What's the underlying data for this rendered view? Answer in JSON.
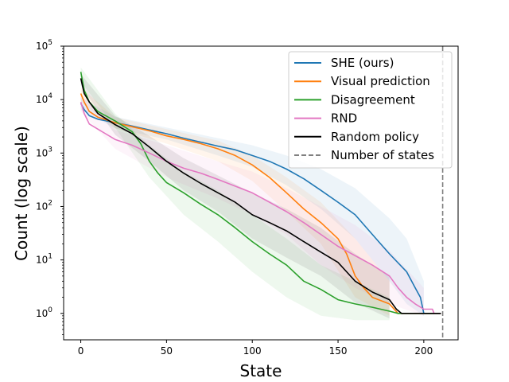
{
  "chart_data": {
    "type": "line",
    "xlabel": "State",
    "ylabel": "Count (log scale)",
    "xlim": [
      -10,
      220
    ],
    "ylim": [
      0.32,
      100000
    ],
    "yscale": "log",
    "x_ticks": [
      0,
      50,
      100,
      150,
      200
    ],
    "y_ticks": [
      1,
      10,
      100,
      1000,
      10000,
      100000
    ],
    "y_tick_labels": [
      {
        "base": "10",
        "exp": "0"
      },
      {
        "base": "10",
        "exp": "1"
      },
      {
        "base": "10",
        "exp": "2"
      },
      {
        "base": "10",
        "exp": "3"
      },
      {
        "base": "10",
        "exp": "4"
      },
      {
        "base": "10",
        "exp": "5"
      }
    ],
    "grid": false,
    "legend_position": "upper right",
    "series": [
      {
        "name": "SHE (ours)",
        "color": "#1f77b4",
        "points": [
          [
            0,
            8500
          ],
          [
            2,
            6500
          ],
          [
            5,
            5000
          ],
          [
            10,
            4300
          ],
          [
            20,
            3700
          ],
          [
            30,
            3200
          ],
          [
            40,
            2700
          ],
          [
            50,
            2300
          ],
          [
            60,
            1900
          ],
          [
            70,
            1600
          ],
          [
            80,
            1350
          ],
          [
            90,
            1150
          ],
          [
            100,
            900
          ],
          [
            110,
            700
          ],
          [
            120,
            500
          ],
          [
            130,
            330
          ],
          [
            140,
            200
          ],
          [
            150,
            120
          ],
          [
            160,
            70
          ],
          [
            170,
            30
          ],
          [
            180,
            13
          ],
          [
            190,
            6
          ],
          [
            195,
            3
          ],
          [
            198,
            2
          ],
          [
            200,
            1
          ],
          [
            210,
            1
          ]
        ],
        "band": [
          [
            0,
            11000,
            6500
          ],
          [
            20,
            4800,
            2900
          ],
          [
            50,
            3000,
            1800
          ],
          [
            80,
            1900,
            900
          ],
          [
            100,
            1400,
            550
          ],
          [
            120,
            900,
            250
          ],
          [
            140,
            500,
            90
          ],
          [
            160,
            220,
            25
          ],
          [
            180,
            60,
            4
          ],
          [
            190,
            25,
            1.5
          ],
          [
            200,
            4,
            0.9
          ]
        ]
      },
      {
        "name": "Visual prediction",
        "color": "#ff7f0e",
        "points": [
          [
            0,
            13000
          ],
          [
            2,
            9000
          ],
          [
            5,
            6000
          ],
          [
            10,
            4700
          ],
          [
            20,
            3700
          ],
          [
            30,
            3100
          ],
          [
            40,
            2600
          ],
          [
            50,
            2100
          ],
          [
            60,
            1800
          ],
          [
            70,
            1500
          ],
          [
            80,
            1200
          ],
          [
            90,
            900
          ],
          [
            100,
            600
          ],
          [
            110,
            350
          ],
          [
            120,
            180
          ],
          [
            130,
            90
          ],
          [
            140,
            50
          ],
          [
            150,
            25
          ],
          [
            155,
            13
          ],
          [
            160,
            5
          ],
          [
            165,
            3
          ],
          [
            170,
            2
          ],
          [
            180,
            1.5
          ],
          [
            185,
            1
          ],
          [
            210,
            1
          ]
        ],
        "band": [
          [
            0,
            17000,
            9000
          ],
          [
            20,
            4700,
            2900
          ],
          [
            50,
            2800,
            1500
          ],
          [
            80,
            1700,
            700
          ],
          [
            100,
            900,
            300
          ],
          [
            120,
            350,
            80
          ],
          [
            140,
            120,
            20
          ],
          [
            160,
            25,
            2
          ],
          [
            180,
            4,
            0.9
          ]
        ]
      },
      {
        "name": "Disagreement",
        "color": "#2ca02c",
        "points": [
          [
            0,
            33000
          ],
          [
            2,
            15000
          ],
          [
            5,
            9000
          ],
          [
            10,
            6000
          ],
          [
            20,
            4000
          ],
          [
            30,
            2500
          ],
          [
            35,
            1500
          ],
          [
            40,
            700
          ],
          [
            45,
            420
          ],
          [
            50,
            280
          ],
          [
            60,
            180
          ],
          [
            70,
            110
          ],
          [
            80,
            70
          ],
          [
            90,
            40
          ],
          [
            100,
            22
          ],
          [
            110,
            13
          ],
          [
            120,
            8
          ],
          [
            130,
            4
          ],
          [
            140,
            2.8
          ],
          [
            150,
            1.8
          ],
          [
            160,
            1.5
          ],
          [
            170,
            1.3
          ],
          [
            180,
            1.1
          ],
          [
            185,
            1
          ],
          [
            210,
            1
          ]
        ],
        "band": [
          [
            0,
            40000,
            22000
          ],
          [
            20,
            5500,
            3000
          ],
          [
            40,
            1400,
            350
          ],
          [
            60,
            450,
            70
          ],
          [
            80,
            200,
            22
          ],
          [
            100,
            70,
            6
          ],
          [
            120,
            25,
            2
          ],
          [
            140,
            8,
            0.9
          ],
          [
            160,
            4,
            0.75
          ],
          [
            180,
            2,
            0.75
          ]
        ]
      },
      {
        "name": "RND",
        "color": "#e377c2",
        "points": [
          [
            0,
            9000
          ],
          [
            2,
            5500
          ],
          [
            5,
            3500
          ],
          [
            10,
            2800
          ],
          [
            20,
            1800
          ],
          [
            30,
            1400
          ],
          [
            40,
            1000
          ],
          [
            50,
            700
          ],
          [
            60,
            520
          ],
          [
            70,
            420
          ],
          [
            80,
            320
          ],
          [
            90,
            240
          ],
          [
            100,
            180
          ],
          [
            110,
            120
          ],
          [
            120,
            80
          ],
          [
            130,
            50
          ],
          [
            140,
            30
          ],
          [
            150,
            18
          ],
          [
            160,
            12
          ],
          [
            170,
            8
          ],
          [
            180,
            5
          ],
          [
            185,
            3
          ],
          [
            190,
            2
          ],
          [
            195,
            1.5
          ],
          [
            200,
            1.2
          ],
          [
            205,
            1.2
          ],
          [
            206,
            1
          ],
          [
            210,
            1
          ]
        ],
        "band": [
          [
            0,
            12000,
            6000
          ],
          [
            20,
            2700,
            1200
          ],
          [
            50,
            1400,
            350
          ],
          [
            80,
            700,
            140
          ],
          [
            100,
            450,
            70
          ],
          [
            120,
            220,
            30
          ],
          [
            140,
            100,
            8
          ],
          [
            160,
            45,
            3
          ],
          [
            180,
            15,
            1.5
          ],
          [
            200,
            3,
            0.9
          ]
        ]
      },
      {
        "name": "Random policy",
        "color": "#000000",
        "points": [
          [
            0,
            25000
          ],
          [
            2,
            13000
          ],
          [
            5,
            9000
          ],
          [
            10,
            5500
          ],
          [
            20,
            3400
          ],
          [
            30,
            2300
          ],
          [
            40,
            1300
          ],
          [
            50,
            700
          ],
          [
            60,
            420
          ],
          [
            70,
            270
          ],
          [
            80,
            180
          ],
          [
            90,
            120
          ],
          [
            100,
            70
          ],
          [
            110,
            50
          ],
          [
            120,
            35
          ],
          [
            130,
            22
          ],
          [
            140,
            14
          ],
          [
            150,
            9
          ],
          [
            155,
            6
          ],
          [
            160,
            4
          ],
          [
            170,
            2.5
          ],
          [
            180,
            1.8
          ],
          [
            184,
            1.2
          ],
          [
            187,
            1
          ],
          [
            210,
            1
          ]
        ],
        "band": [
          [
            0,
            30000,
            18000
          ],
          [
            20,
            5000,
            2200
          ],
          [
            40,
            2100,
            700
          ],
          [
            60,
            800,
            200
          ],
          [
            80,
            380,
            80
          ],
          [
            100,
            180,
            25
          ],
          [
            120,
            90,
            11
          ],
          [
            140,
            40,
            5
          ],
          [
            160,
            13,
            1.6
          ],
          [
            180,
            5,
            0.8
          ]
        ]
      }
    ],
    "reference_line": {
      "name": "Number of states",
      "x": 211,
      "color": "#808080"
    }
  }
}
